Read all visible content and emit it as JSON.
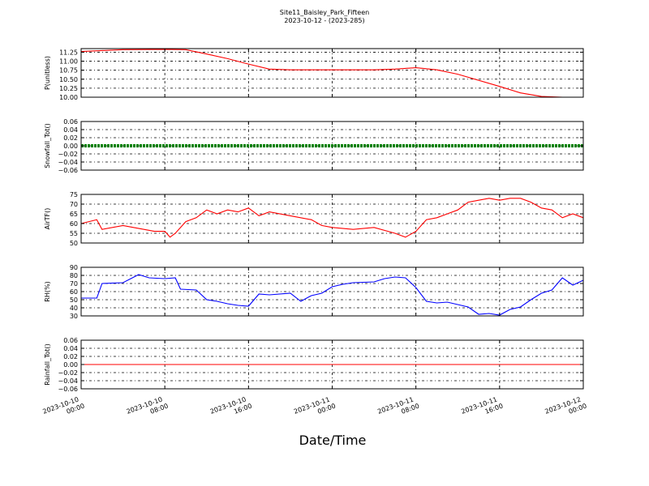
{
  "figure": {
    "title": "Site11_Baisley_Park_Fifteen",
    "subtitle": "2023-10-12 - (2023-285)",
    "xlabel": "Date/Time"
  },
  "chart_data": [
    {
      "type": "line",
      "ylabel": "P(unitless)",
      "ylim": [
        10.0,
        11.35
      ],
      "yticks": [
        "10.00",
        "10.25",
        "10.50",
        "10.75",
        "11.00",
        "11.25"
      ],
      "grid": true,
      "color": "#ff0000",
      "x_hours": [
        0,
        4,
        8,
        10,
        12,
        14,
        16,
        18,
        20,
        24,
        28,
        30,
        32,
        34,
        36,
        40,
        42,
        44,
        46,
        48
      ],
      "values": [
        11.27,
        11.32,
        11.33,
        11.32,
        11.2,
        11.07,
        10.92,
        10.78,
        10.76,
        10.76,
        10.76,
        10.78,
        10.82,
        10.76,
        10.64,
        10.3,
        10.12,
        10.02,
        10.0,
        10.0
      ],
      "xticks": [
        "2023-10-10\n00:00",
        "2023-10-10\n08:00",
        "2023-10-10\n16:00",
        "2023-10-11\n00:00",
        "2023-10-11\n08:00",
        "2023-10-11\n16:00",
        "2023-10-12\n00:00"
      ]
    },
    {
      "type": "line",
      "ylabel": "Snowfall_Tot()",
      "ylim": [
        -0.06,
        0.06
      ],
      "yticks": [
        "−0.06",
        "−0.04",
        "−0.02",
        "0.00",
        "0.02",
        "0.04",
        "0.06"
      ],
      "grid": true,
      "color": "#008000",
      "x_hours": [
        0,
        48
      ],
      "values": [
        0.0,
        0.0
      ],
      "xticks": [
        "2023-10-10\n00:00",
        "2023-10-10\n08:00",
        "2023-10-10\n16:00",
        "2023-10-11\n00:00",
        "2023-10-11\n08:00",
        "2023-10-11\n16:00",
        "2023-10-12\n00:00"
      ]
    },
    {
      "type": "line",
      "ylabel": "AirTF()",
      "ylim": [
        50,
        75
      ],
      "yticks": [
        "50",
        "55",
        "60",
        "65",
        "70",
        "75"
      ],
      "grid": true,
      "color": "#ff0000",
      "x_hours": [
        0,
        1.5,
        2,
        4,
        6,
        7,
        8,
        8.5,
        9,
        10,
        11,
        12,
        13,
        14,
        15,
        16,
        17,
        18,
        20,
        22,
        23,
        24,
        26,
        28,
        30,
        31,
        32,
        33,
        34,
        35,
        36,
        37,
        38,
        39,
        40,
        41,
        42,
        43,
        44,
        45,
        46,
        47,
        48
      ],
      "values": [
        60,
        62,
        57,
        59,
        57,
        56,
        56,
        53,
        55,
        61,
        63,
        67,
        65,
        67,
        66,
        68,
        64,
        66,
        64,
        62,
        59,
        58,
        57,
        58,
        55,
        53,
        56,
        62,
        63,
        65,
        67,
        71,
        72,
        73,
        72,
        73,
        73,
        71,
        68,
        67,
        63,
        65,
        63
      ],
      "xticks": [
        "2023-10-10\n00:00",
        "2023-10-10\n08:00",
        "2023-10-10\n16:00",
        "2023-10-11\n00:00",
        "2023-10-11\n08:00",
        "2023-10-11\n16:00",
        "2023-10-12\n00:00"
      ]
    },
    {
      "type": "line",
      "ylabel": "RH(%)",
      "ylim": [
        30,
        90
      ],
      "yticks": [
        "30",
        "40",
        "50",
        "60",
        "70",
        "80",
        "90"
      ],
      "grid": true,
      "color": "#0000ff",
      "x_hours": [
        0,
        1.5,
        2,
        4,
        5.5,
        6.5,
        8,
        9,
        9.5,
        11,
        12,
        13,
        14,
        15,
        16,
        17,
        18,
        20,
        21,
        22,
        23,
        24,
        25,
        26,
        28,
        29,
        30,
        31,
        32,
        33,
        34,
        35,
        36,
        37,
        38,
        39,
        40,
        41,
        42,
        43,
        44,
        45,
        46,
        47,
        48
      ],
      "values": [
        52,
        52,
        70,
        71,
        81,
        77,
        76,
        77,
        63,
        62,
        50,
        48,
        45,
        43,
        42,
        57,
        56,
        58,
        48,
        55,
        58,
        66,
        69,
        71,
        72,
        76,
        78,
        77,
        65,
        48,
        46,
        47,
        44,
        41,
        32,
        33,
        31,
        38,
        41,
        50,
        58,
        62,
        77,
        68,
        74
      ],
      "xticks": [
        "2023-10-10\n00:00",
        "2023-10-10\n08:00",
        "2023-10-10\n16:00",
        "2023-10-11\n00:00",
        "2023-10-11\n08:00",
        "2023-10-11\n16:00",
        "2023-10-12\n00:00"
      ]
    },
    {
      "type": "line",
      "ylabel": "Rainfall_Tot()",
      "ylim": [
        -0.06,
        0.06
      ],
      "yticks": [
        "−0.06",
        "−0.04",
        "−0.02",
        "0.00",
        "0.02",
        "0.04",
        "0.06"
      ],
      "grid": true,
      "color": "#ff0000",
      "x_hours": [
        0,
        48
      ],
      "values": [
        0.0,
        0.0
      ],
      "xticks": [
        "2023-10-10\n00:00",
        "2023-10-10\n08:00",
        "2023-10-10\n16:00",
        "2023-10-11\n00:00",
        "2023-10-11\n08:00",
        "2023-10-11\n16:00",
        "2023-10-12\n00:00"
      ]
    }
  ]
}
